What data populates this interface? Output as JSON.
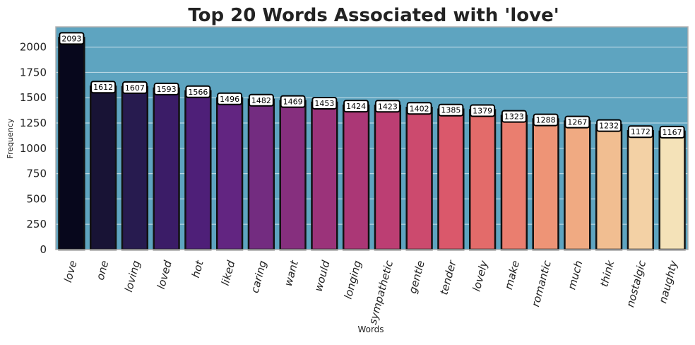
{
  "chart_data": {
    "type": "bar",
    "title": "Top 20 Words Associated with 'love'",
    "xlabel": "Words",
    "ylabel": "Frequency",
    "categories": [
      "love",
      "one",
      "loving",
      "loved",
      "hot",
      "liked",
      "caring",
      "want",
      "would",
      "longing",
      "sympathetic",
      "gentle",
      "tender",
      "lovely",
      "make",
      "romantic",
      "much",
      "think",
      "nostalgic",
      "naughty"
    ],
    "values": [
      2093,
      1612,
      1607,
      1593,
      1566,
      1496,
      1482,
      1469,
      1453,
      1424,
      1423,
      1402,
      1385,
      1379,
      1323,
      1288,
      1267,
      1232,
      1172,
      1167
    ],
    "ylim": [
      0,
      2200
    ],
    "yticks": [
      0,
      250,
      500,
      750,
      1000,
      1250,
      1500,
      1750,
      2000
    ],
    "grid": true,
    "legend": "none",
    "colors": {
      "plot_background": "#5ea4c0",
      "grid": "#b7d6e3",
      "bars": [
        "#07071c",
        "#181335",
        "#271b4f",
        "#3b1c67",
        "#4e1f78",
        "#622581",
        "#732c80",
        "#862f7e",
        "#9b337a",
        "#ab3776",
        "#bc3e73",
        "#cc4a6e",
        "#da586b",
        "#e36b6a",
        "#ea7e6f",
        "#ee9476",
        "#f0aa82",
        "#f1be91",
        "#f3d1a5",
        "#f4e2b8"
      ],
      "bar_edge": "#111111",
      "label_box": "#ffffff"
    }
  }
}
